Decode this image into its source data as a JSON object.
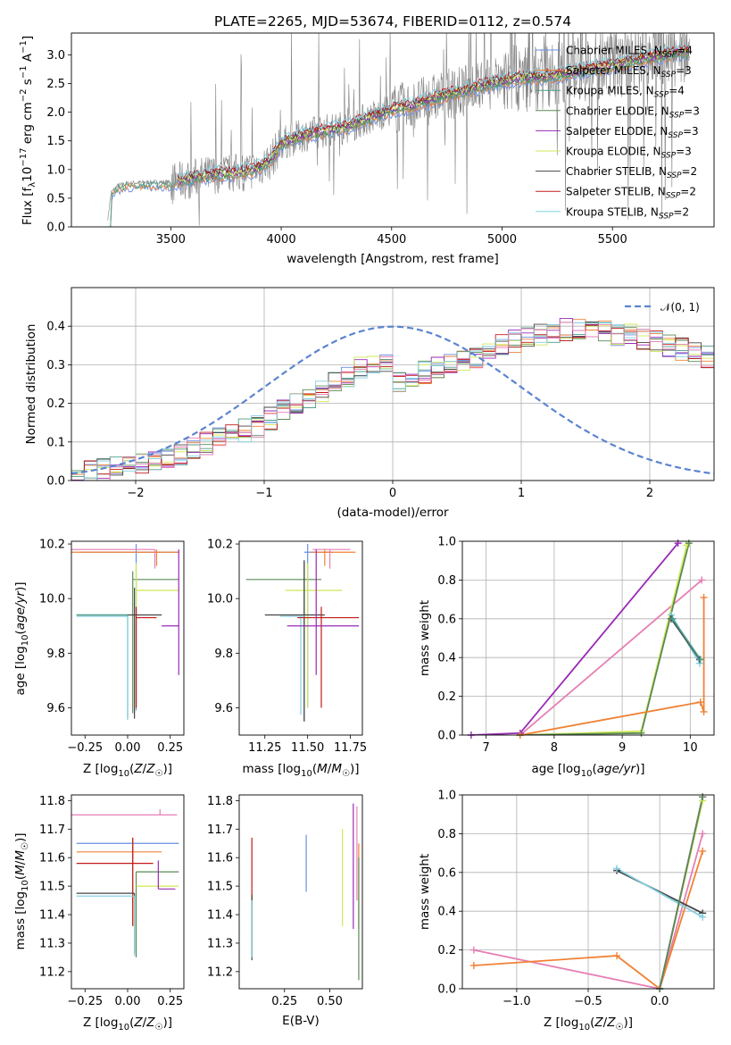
{
  "figure": {
    "title": "PLATE=2265, MJD=53674, FIBERID=0112, z=0.574"
  },
  "models": [
    {
      "name": "Chabrier MILES",
      "nssp": "4",
      "color": "#6a8ee3"
    },
    {
      "name": "Salpeter MILES",
      "nssp": "3",
      "color": "#f08236"
    },
    {
      "name": "Kroupa MILES",
      "nssp": "4",
      "color": "#4c9e8c"
    },
    {
      "name": "Chabrier ELODIE",
      "nssp": "3",
      "color": "#5a8a55"
    },
    {
      "name": "Salpeter ELODIE",
      "nssp": "3",
      "color": "#9a2ab5"
    },
    {
      "name": "Kroupa ELODIE",
      "nssp": "3",
      "color": "#cfe854"
    },
    {
      "name": "Chabrier STELIB",
      "nssp": "2",
      "color": "#444444"
    },
    {
      "name": "Salpeter STELIB",
      "nssp": "2",
      "color": "#c21a1a"
    },
    {
      "name": "Kroupa STELIB",
      "nssp": "2",
      "color": "#82cfe0"
    }
  ],
  "extra_colors": [
    "#e67fb4"
  ],
  "chart_data": [
    {
      "id": "spectrum",
      "type": "line",
      "title": "PLATE=2265, MJD=53674, FIBERID=0112, z=0.574",
      "xlabel": "wavelength [Angstrom, rest frame]",
      "ylabel": "Flux [f_λ 10^-17 erg cm^-2 s^-1 A^-1]",
      "xlim": [
        3050,
        5960
      ],
      "ylim": [
        0,
        3.38
      ],
      "xticks": [
        3500,
        4000,
        4500,
        5000,
        5500
      ],
      "yticks": [
        0.0,
        0.5,
        1.0,
        1.5,
        2.0,
        2.5,
        3.0
      ],
      "grid": false,
      "legend": "top-right",
      "data_color": "#808080",
      "continuum": {
        "x": [
          3210,
          3230,
          3260,
          3300,
          3400,
          3500,
          3550,
          3600,
          3700,
          3800,
          3880,
          3950,
          4000,
          4100,
          4200,
          4300,
          4400,
          4500,
          4600,
          4700,
          4800,
          4860,
          4900,
          5000,
          5100,
          5200,
          5300,
          5400,
          5500,
          5600,
          5700,
          5800
        ],
        "y": [
          0.0,
          0.6,
          0.72,
          0.76,
          0.78,
          0.78,
          0.8,
          0.85,
          0.92,
          0.94,
          1.0,
          1.15,
          1.45,
          1.6,
          1.68,
          1.75,
          1.9,
          2.05,
          2.12,
          2.25,
          2.35,
          2.4,
          2.45,
          2.55,
          2.6,
          2.62,
          2.68,
          2.75,
          2.82,
          2.9,
          2.97,
          3.05
        ]
      }
    },
    {
      "id": "residuals",
      "type": "histogram",
      "xlabel": "(data-model)/error",
      "ylabel": "Normed distribution",
      "xlim": [
        -2.5,
        2.5
      ],
      "ylim": [
        0,
        0.5
      ],
      "xticks": [
        -2,
        -1,
        0,
        1,
        2
      ],
      "yticks": [
        0.0,
        0.1,
        0.2,
        0.3,
        0.4
      ],
      "grid": true,
      "legend": "top-right",
      "normal_label": "𝒩(0, 1)",
      "normal_color": "#5b84d1",
      "bin_width": 0.1,
      "profile": [
        0.018,
        0.022,
        0.028,
        0.034,
        0.036,
        0.045,
        0.048,
        0.062,
        0.068,
        0.085,
        0.095,
        0.11,
        0.12,
        0.13,
        0.14,
        0.16,
        0.18,
        0.2,
        0.21,
        0.23,
        0.25,
        0.27,
        0.29,
        0.3,
        0.31,
        0.32,
        0.33,
        0.34,
        0.35,
        0.36,
        0.37,
        0.38,
        0.38,
        0.39,
        0.39,
        0.39,
        0.39,
        0.38,
        0.38,
        0.37,
        0.36,
        0.35,
        0.34,
        0.32,
        0.31,
        0.3,
        0.29,
        0.28,
        0.27,
        0.26
      ]
    },
    {
      "id": "age_vs_z",
      "type": "scatter",
      "xlabel": "Z [log10(Z/Z☉)]",
      "ylabel": "age [log10(age/yr)]",
      "xlim": [
        -0.33,
        0.33
      ],
      "ylim": [
        9.5,
        10.21
      ],
      "xticks": [
        -0.25,
        0.0,
        0.25
      ],
      "yticks": [
        9.6,
        9.8,
        10.0,
        10.2
      ],
      "grid": false,
      "points": [
        {
          "model": 0,
          "x": 0.05,
          "y": 10.17,
          "xerr": [
            0.33,
            0.25
          ],
          "yerr": [
            0.58,
            0.03
          ]
        },
        {
          "model": 1,
          "x": 0.17,
          "y": 10.17,
          "xerr": [
            0.5,
            0.13
          ],
          "yerr": [
            0.05,
            0.01
          ]
        },
        {
          "model": 9,
          "x": 0.16,
          "y": 10.18,
          "xerr": [
            0.49,
            0.0
          ],
          "yerr": [
            0.07,
            0.0
          ]
        },
        {
          "model": 3,
          "x": 0.03,
          "y": 10.07,
          "xerr": [
            0.0,
            0.27
          ],
          "yerr": [
            0.49,
            0.03
          ]
        },
        {
          "model": 5,
          "x": 0.05,
          "y": 10.03,
          "xerr": [
            0.0,
            0.25
          ],
          "yerr": [
            0.43,
            0.1
          ]
        },
        {
          "model": 6,
          "x": 0.04,
          "y": 9.94,
          "xerr": [
            0.34,
            0.16
          ],
          "yerr": [
            0.38,
            0.1
          ]
        },
        {
          "model": 2,
          "x": 0.0,
          "y": 9.94,
          "xerr": [
            0.3,
            0.0
          ],
          "yerr": [
            0.38,
            0.0
          ]
        },
        {
          "model": 8,
          "x": 0.0,
          "y": 9.935,
          "xerr": [
            0.3,
            0.0
          ],
          "yerr": [
            0.38,
            0.0
          ]
        },
        {
          "model": 7,
          "x": 0.05,
          "y": 9.93,
          "xerr": [
            0.0,
            0.12
          ],
          "yerr": [
            0.33,
            0.04
          ]
        },
        {
          "model": 4,
          "x": 0.3,
          "y": 9.9,
          "xerr": [
            0.1,
            0.0
          ],
          "yerr": [
            0.18,
            0.28
          ]
        }
      ]
    },
    {
      "id": "age_vs_mass",
      "type": "scatter",
      "xlabel": "mass [log10(M/M☉)]",
      "ylabel": "",
      "xlim": [
        11.1,
        11.82
      ],
      "ylim": [
        9.5,
        10.21
      ],
      "xticks": [
        11.25,
        11.5,
        11.75
      ],
      "yticks": [
        9.6,
        9.8,
        10.0,
        10.2
      ],
      "grid": false,
      "points": [
        {
          "model": 0,
          "x": 11.5,
          "y": 10.17,
          "xerr": [
            0.02,
            0.15
          ],
          "yerr": [
            0.57,
            0.03
          ]
        },
        {
          "model": 1,
          "x": 11.6,
          "y": 10.17,
          "xerr": [
            0.08,
            0.18
          ],
          "yerr": [
            0.05,
            0.01
          ]
        },
        {
          "model": 9,
          "x": 11.63,
          "y": 10.18,
          "xerr": [
            0.1,
            0.12
          ],
          "yerr": [
            0.07,
            0.0
          ]
        },
        {
          "model": 3,
          "x": 11.48,
          "y": 10.07,
          "xerr": [
            0.34,
            0.1
          ],
          "yerr": [
            0.52,
            0.07
          ]
        },
        {
          "model": 5,
          "x": 11.5,
          "y": 10.03,
          "xerr": [
            0.13,
            0.2
          ],
          "yerr": [
            0.43,
            0.1
          ]
        },
        {
          "model": 6,
          "x": 11.48,
          "y": 9.94,
          "xerr": [
            0.23,
            0.12
          ],
          "yerr": [
            0.39,
            0.2
          ]
        },
        {
          "model": 8,
          "x": 11.46,
          "y": 9.935,
          "xerr": [
            0.12,
            0.02
          ],
          "yerr": [
            0.36,
            0.0
          ]
        },
        {
          "model": 7,
          "x": 11.58,
          "y": 9.93,
          "xerr": [
            0.14,
            0.22
          ],
          "yerr": [
            0.33,
            0.04
          ]
        },
        {
          "model": 4,
          "x": 11.55,
          "y": 9.9,
          "xerr": [
            0.17,
            0.25
          ],
          "yerr": [
            0.18,
            0.28
          ]
        }
      ]
    },
    {
      "id": "mass_weight_vs_age",
      "type": "line",
      "xlabel": "age [log10(age/yr)]",
      "ylabel": "mass weight",
      "xlim": [
        6.65,
        10.35
      ],
      "ylim": [
        0.0,
        1.0
      ],
      "xticks": [
        7,
        8,
        9,
        10
      ],
      "yticks": [
        0.0,
        0.2,
        0.4,
        0.6,
        0.8,
        1.0
      ],
      "grid": true,
      "series": [
        {
          "model": 4,
          "x": [
            6.78,
            7.5,
            9.82
          ],
          "y": [
            0.0,
            0.01,
            0.99
          ]
        },
        {
          "model": 9,
          "x": [
            7.5,
            10.17
          ],
          "y": [
            0.0,
            0.8
          ]
        },
        {
          "model": 5,
          "x": [
            7.5,
            9.28,
            9.95
          ],
          "y": [
            0.0,
            0.02,
            0.98
          ]
        },
        {
          "model": 3,
          "x": [
            7.5,
            9.28,
            9.98
          ],
          "y": [
            0.0,
            0.01,
            0.99
          ]
        },
        {
          "model": 1,
          "x": [
            7.5,
            10.15,
            10.2,
            10.2
          ],
          "y": [
            0.0,
            0.17,
            0.12,
            0.71
          ]
        },
        {
          "model": 8,
          "x": [
            9.72,
            10.14
          ],
          "y": [
            0.62,
            0.37
          ]
        },
        {
          "model": 6,
          "x": [
            9.72,
            10.14
          ],
          "y": [
            0.6,
            0.39
          ]
        },
        {
          "model": 2,
          "x": [
            9.74,
            10.15
          ],
          "y": [
            0.6,
            0.39
          ]
        }
      ]
    },
    {
      "id": "mass_vs_z",
      "type": "scatter",
      "xlabel": "Z [log10(Z/Z☉)]",
      "ylabel": "mass [log10(M/M☉)]",
      "xlim": [
        -0.33,
        0.33
      ],
      "ylim": [
        11.14,
        11.82
      ],
      "xticks": [
        -0.25,
        0.0,
        0.25
      ],
      "yticks": [
        11.2,
        11.3,
        11.4,
        11.5,
        11.6,
        11.7,
        11.8
      ],
      "grid": false,
      "points": [
        {
          "model": 9,
          "x": 0.19,
          "y": 11.75,
          "xerr": [
            0.52,
            0.1
          ],
          "yerr": [
            0.0,
            0.02
          ]
        },
        {
          "model": 0,
          "x": 0.03,
          "y": 11.65,
          "xerr": [
            0.33,
            0.27
          ],
          "yerr": [
            0.07,
            0.0
          ]
        },
        {
          "model": 1,
          "x": 0.03,
          "y": 11.62,
          "xerr": [
            0.33,
            0.17
          ],
          "yerr": [
            0.26,
            0.05
          ]
        },
        {
          "model": 7,
          "x": 0.03,
          "y": 11.58,
          "xerr": [
            0.33,
            0.12
          ],
          "yerr": [
            0.22,
            0.09
          ]
        },
        {
          "model": 3,
          "x": 0.05,
          "y": 11.55,
          "xerr": [
            0.0,
            0.25
          ],
          "yerr": [
            0.3,
            0.0
          ]
        },
        {
          "model": 5,
          "x": 0.05,
          "y": 11.5,
          "xerr": [
            0.0,
            0.25
          ],
          "yerr": [
            0.0,
            0.0
          ]
        },
        {
          "model": 4,
          "x": 0.18,
          "y": 11.49,
          "xerr": [
            0.0,
            0.1
          ],
          "yerr": [
            0.0,
            0.1
          ]
        },
        {
          "model": 6,
          "x": 0.04,
          "y": 11.475,
          "xerr": [
            0.34,
            0.0
          ],
          "yerr": [
            0.21,
            0.0
          ]
        },
        {
          "model": 8,
          "x": 0.04,
          "y": 11.465,
          "xerr": [
            0.34,
            0.0
          ],
          "yerr": [
            0.21,
            0.0
          ]
        }
      ]
    },
    {
      "id": "mass_vs_ebv",
      "type": "scatter",
      "xlabel": "E(B-V)",
      "ylabel": "",
      "xlim": [
        0.0,
        0.68
      ],
      "ylim": [
        11.14,
        11.82
      ],
      "xticks": [
        0.25,
        0.5
      ],
      "yticks": [
        11.2,
        11.3,
        11.4,
        11.5,
        11.6,
        11.7,
        11.8
      ],
      "grid": false,
      "points": [
        {
          "model": 0,
          "x": 0.37,
          "y": 11.58,
          "yerr": [
            0.1,
            0.1
          ]
        },
        {
          "model": 7,
          "x": 0.07,
          "y": 11.55,
          "yerr": [
            0.3,
            0.12
          ]
        },
        {
          "model": 6,
          "x": 0.07,
          "y": 11.47,
          "yerr": [
            0.23,
            0.0
          ]
        },
        {
          "model": 8,
          "x": 0.07,
          "y": 11.45,
          "yerr": [
            0.2,
            0.0
          ]
        },
        {
          "model": 5,
          "x": 0.57,
          "y": 11.53,
          "yerr": [
            0.17,
            0.17
          ]
        },
        {
          "model": 4,
          "x": 0.63,
          "y": 11.55,
          "yerr": [
            0.2,
            0.24
          ]
        },
        {
          "model": 9,
          "x": 0.65,
          "y": 11.6,
          "yerr": [
            0.15,
            0.18
          ]
        },
        {
          "model": 1,
          "x": 0.66,
          "y": 11.55,
          "yerr": [
            0.2,
            0.1
          ]
        },
        {
          "model": 3,
          "x": 0.66,
          "y": 11.4,
          "yerr": [
            0.23,
            0.2
          ]
        }
      ]
    },
    {
      "id": "mass_weight_vs_z",
      "type": "line",
      "xlabel": "Z [log10(Z/Z☉)]",
      "ylabel": "mass weight",
      "xlim": [
        -1.38,
        0.38
      ],
      "ylim": [
        0.0,
        1.0
      ],
      "xticks": [
        -1.0,
        -0.5,
        0.0
      ],
      "yticks": [
        0.0,
        0.2,
        0.4,
        0.6,
        0.8,
        1.0
      ],
      "grid": true,
      "series": [
        {
          "model": 9,
          "x": [
            -1.3,
            0.0,
            0.3
          ],
          "y": [
            0.2,
            0.0,
            0.8
          ]
        },
        {
          "model": 1,
          "x": [
            -1.3,
            -0.3,
            0.0,
            0.3
          ],
          "y": [
            0.12,
            0.17,
            0.0,
            0.71
          ]
        },
        {
          "model": 5,
          "x": [
            0.0,
            0.3
          ],
          "y": [
            0.0,
            0.97
          ]
        },
        {
          "model": 4,
          "x": [
            0.0,
            0.3
          ],
          "y": [
            0.0,
            0.99
          ]
        },
        {
          "model": 6,
          "x": [
            -0.3,
            0.3
          ],
          "y": [
            0.61,
            0.39
          ]
        },
        {
          "model": 8,
          "x": [
            -0.3,
            0.3
          ],
          "y": [
            0.62,
            0.37
          ]
        },
        {
          "model": 3,
          "x": [
            0.0,
            0.3
          ],
          "y": [
            0.0,
            0.99
          ]
        }
      ]
    }
  ]
}
